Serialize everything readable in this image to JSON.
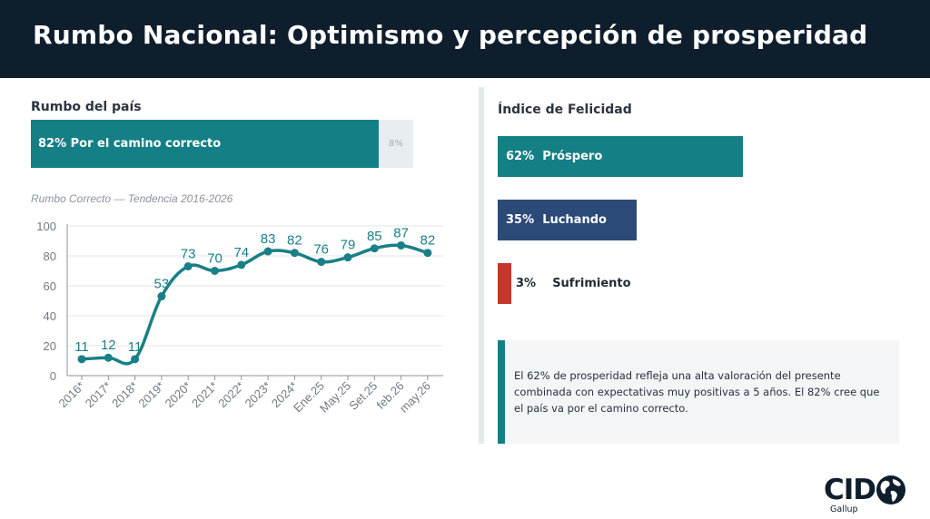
{
  "header": {
    "title": "Rumbo Nacional: Optimismo y percepción de prosperidad"
  },
  "rumbo": {
    "section_label": "Rumbo del país",
    "main_text": "82% Por el camino correcto",
    "main_value": 82,
    "rest_text": "8%",
    "rest_value": 8
  },
  "chart_data": {
    "type": "line",
    "title": "Rumbo Correcto — Tendencia 2016-2026",
    "categories": [
      "2016*",
      "2017*",
      "2018*",
      "2019*",
      "2020*",
      "2021*",
      "2022*",
      "2023*",
      "2024*",
      "Ene.25",
      "May.25",
      "Set.25",
      "feb.26",
      "may.26"
    ],
    "series": [
      {
        "values": [
          11,
          12,
          11,
          53,
          73,
          70,
          74,
          83,
          82,
          76,
          79,
          85,
          87,
          82
        ]
      }
    ],
    "ylim": [
      0,
      100
    ],
    "yticks": [
      0,
      20,
      40,
      60,
      80,
      100
    ],
    "grid": true,
    "legend": "none",
    "line_color": "#1a7f86"
  },
  "felicidad": {
    "section_label": "Índice de Felicidad",
    "items": [
      {
        "percent": "62%",
        "label": "Próspero",
        "value": 62,
        "color": "#157f86"
      },
      {
        "percent": "35%",
        "label": "Luchando",
        "value": 35,
        "color": "#2c4a78"
      },
      {
        "percent": "3%",
        "label": "Sufrimiento",
        "value": 3,
        "color": "#c0392b"
      }
    ]
  },
  "note": {
    "text": "El 62% de prosperidad refleja una alta valoración del presente combinada con expectativas muy positivas a 5 años. El 82% cree que el país va por el camino correcto."
  },
  "logo": {
    "main": "CID",
    "sub": "Gallup"
  }
}
